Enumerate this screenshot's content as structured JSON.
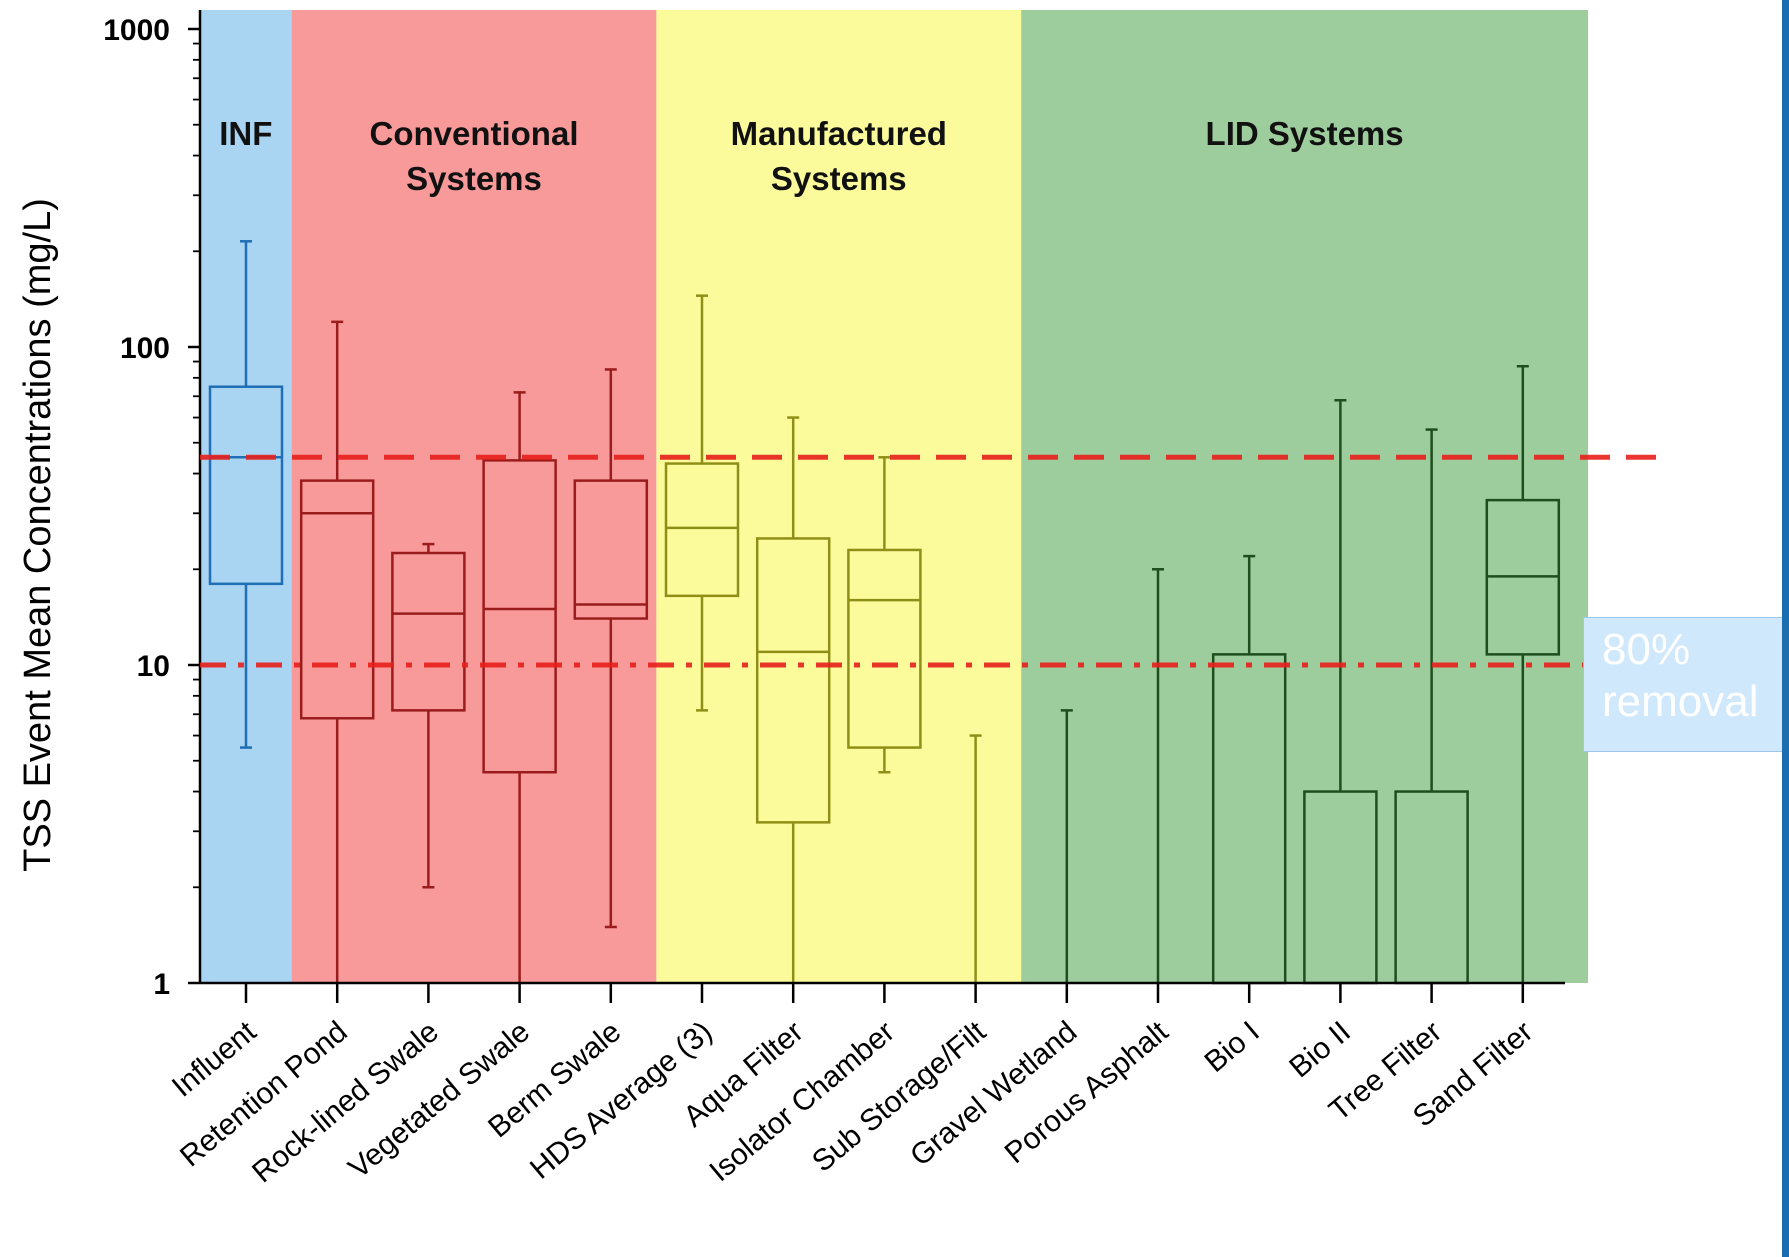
{
  "chart_data": {
    "type": "box",
    "ylabel": "TSS Event Mean Concentrations (mg/L)",
    "xlabel": "",
    "yscale": "log",
    "ylim": [
      1,
      1000
    ],
    "yticks": [
      1,
      10,
      100,
      1000
    ],
    "ytick_labels": [
      "1",
      "10",
      "100",
      "1000"
    ],
    "grid": false,
    "groups": [
      {
        "name": "INF",
        "lines": [
          "INF"
        ],
        "color": "#a9d4f2",
        "from": 0,
        "to": 0
      },
      {
        "name": "Conventional Systems",
        "lines": [
          "Conventional",
          "Systems"
        ],
        "color": "#f99a9a",
        "from": 1,
        "to": 4
      },
      {
        "name": "Manufactured Systems",
        "lines": [
          "Manufactured",
          "Systems"
        ],
        "color": "#fbfb9c",
        "from": 5,
        "to": 8
      },
      {
        "name": "LID Systems",
        "lines": [
          "LID Systems"
        ],
        "color": "#9dcd9d",
        "from": 9,
        "to": 14
      }
    ],
    "categories": [
      "Influent",
      "Retention Pond",
      "Rock-lined Swale",
      "Vegetated Swale",
      "Berm Swale",
      "HDS Average (3)",
      "Aqua Filter",
      "Isolator Chamber",
      "Sub Storage/Filt",
      "Gravel Wetland",
      "Porous Asphalt",
      "Bio I",
      "Bio II",
      "Tree Filter",
      "Sand Filter"
    ],
    "boxes": [
      {
        "min": 5.5,
        "q1": 18,
        "median": 45,
        "q3": 75,
        "max": 215,
        "color": "#1f6fb5"
      },
      {
        "min": 1,
        "q1": 6.8,
        "median": 30,
        "q3": 38,
        "max": 120,
        "color": "#9b1c1c"
      },
      {
        "min": 2,
        "q1": 7.2,
        "median": 14.5,
        "q3": 22.5,
        "max": 24,
        "color": "#9b1c1c"
      },
      {
        "min": 1,
        "q1": 4.6,
        "median": 15,
        "q3": 44,
        "max": 72,
        "color": "#9b1c1c"
      },
      {
        "min": 1.5,
        "q1": 14,
        "median": 15.5,
        "q3": 38,
        "max": 85,
        "color": "#9b1c1c"
      },
      {
        "min": 7.2,
        "q1": 16.5,
        "median": 27,
        "q3": 43,
        "max": 145,
        "color": "#8f8f17"
      },
      {
        "min": 1,
        "q1": 3.2,
        "median": 11,
        "q3": 25,
        "max": 60,
        "color": "#8f8f17"
      },
      {
        "min": 4.6,
        "q1": 5.5,
        "median": 16,
        "q3": 23,
        "max": 45,
        "color": "#8f8f17"
      },
      {
        "min": 1,
        "q1": null,
        "median": null,
        "q3": null,
        "max": 6,
        "color": "#8f8f17"
      },
      {
        "min": 1,
        "q1": null,
        "median": null,
        "q3": null,
        "max": 7.2,
        "color": "#1e4d1e"
      },
      {
        "min": 1,
        "q1": null,
        "median": null,
        "q3": null,
        "max": 20,
        "color": "#1e4d1e"
      },
      {
        "min": 1,
        "q1": 1,
        "median": 1,
        "q3": 10.8,
        "max": 22,
        "color": "#1e4d1e"
      },
      {
        "min": 1,
        "q1": 1,
        "median": 1,
        "q3": 4,
        "max": 68,
        "color": "#1e4d1e"
      },
      {
        "min": 1,
        "q1": 1,
        "median": 1,
        "q3": 4,
        "max": 55,
        "color": "#1e4d1e"
      },
      {
        "min": 1,
        "q1": 10.8,
        "median": 19,
        "q3": 33,
        "max": 87,
        "color": "#1e4d1e"
      }
    ],
    "reference_lines": [
      {
        "value": 45,
        "style": "dashed",
        "color": "#e8201b"
      },
      {
        "value": 10,
        "style": "dash-dot",
        "color": "#e8201b"
      }
    ],
    "annotation": {
      "lines": [
        "80%",
        "removal"
      ],
      "color": "#cfe8fb"
    }
  }
}
